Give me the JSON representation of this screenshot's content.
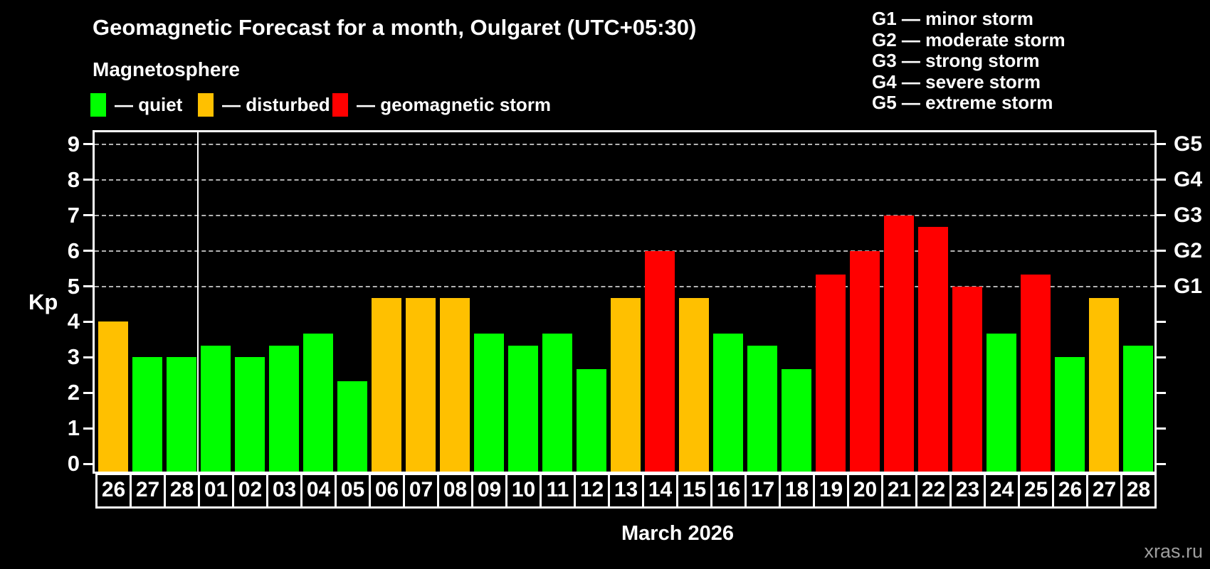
{
  "colors": {
    "quiet": "#00ff00",
    "disturbed": "#ffc000",
    "storm": "#ff0000",
    "grid": "#b3b3b3",
    "axis": "#ffffff",
    "text": "#ffffff",
    "watermark": "#9e9e9e",
    "background": "#000000"
  },
  "legend": {
    "items": [
      {
        "key": "quiet",
        "label": "— quiet"
      },
      {
        "key": "disturbed",
        "label": "— disturbed"
      },
      {
        "key": "storm",
        "label": "— geomagnetic storm"
      }
    ]
  },
  "storm_scale": {
    "items": [
      "G1 — minor storm",
      "G2 — moderate storm",
      "G3 — strong storm",
      "G4 — severe storm",
      "G5 — extreme storm"
    ]
  },
  "axes": {
    "y_label": "Kp",
    "y_ticks": [
      0,
      1,
      2,
      3,
      4,
      5,
      6,
      7,
      8,
      9
    ],
    "gridline_levels": [
      5,
      6,
      7,
      8,
      9
    ],
    "right_labels": [
      {
        "label": "G1",
        "kp": 5
      },
      {
        "label": "G2",
        "kp": 6
      },
      {
        "label": "G3",
        "kp": 7
      },
      {
        "label": "G4",
        "kp": 8
      },
      {
        "label": "G5",
        "kp": 9
      }
    ]
  },
  "watermark": "xras.ru",
  "chart_data": {
    "type": "bar",
    "title": "Geomagnetic Forecast for a month, Oulgaret (UTC+05:30)",
    "subtitle": "Magnetosphere",
    "xlabel": "March 2026",
    "ylabel": "Kp",
    "ylim": [
      0,
      9
    ],
    "grid": "horizontal dashed lines at Kp 5,6,7,8,9",
    "legend_position": "top",
    "categories": [
      "26",
      "27",
      "28",
      "01",
      "02",
      "03",
      "04",
      "05",
      "06",
      "07",
      "08",
      "09",
      "10",
      "11",
      "12",
      "13",
      "14",
      "15",
      "16",
      "17",
      "18",
      "19",
      "20",
      "21",
      "22",
      "23",
      "24",
      "25",
      "26",
      "27",
      "28"
    ],
    "values": [
      4,
      3,
      3,
      3.33,
      3,
      3.33,
      3.67,
      2.33,
      4.67,
      4.67,
      4.67,
      3.67,
      3.33,
      3.67,
      2.67,
      4.67,
      6,
      4.67,
      3.67,
      3.33,
      2.67,
      5.33,
      6,
      7,
      6.67,
      5,
      3.67,
      5.33,
      3,
      4.67,
      3.33
    ],
    "statuses": [
      "disturbed",
      "quiet",
      "quiet",
      "quiet",
      "quiet",
      "quiet",
      "quiet",
      "quiet",
      "disturbed",
      "disturbed",
      "disturbed",
      "quiet",
      "quiet",
      "quiet",
      "quiet",
      "disturbed",
      "storm",
      "disturbed",
      "quiet",
      "quiet",
      "quiet",
      "storm",
      "storm",
      "storm",
      "storm",
      "storm",
      "quiet",
      "storm",
      "quiet",
      "disturbed",
      "quiet"
    ],
    "month_separator_after_index": 2
  }
}
